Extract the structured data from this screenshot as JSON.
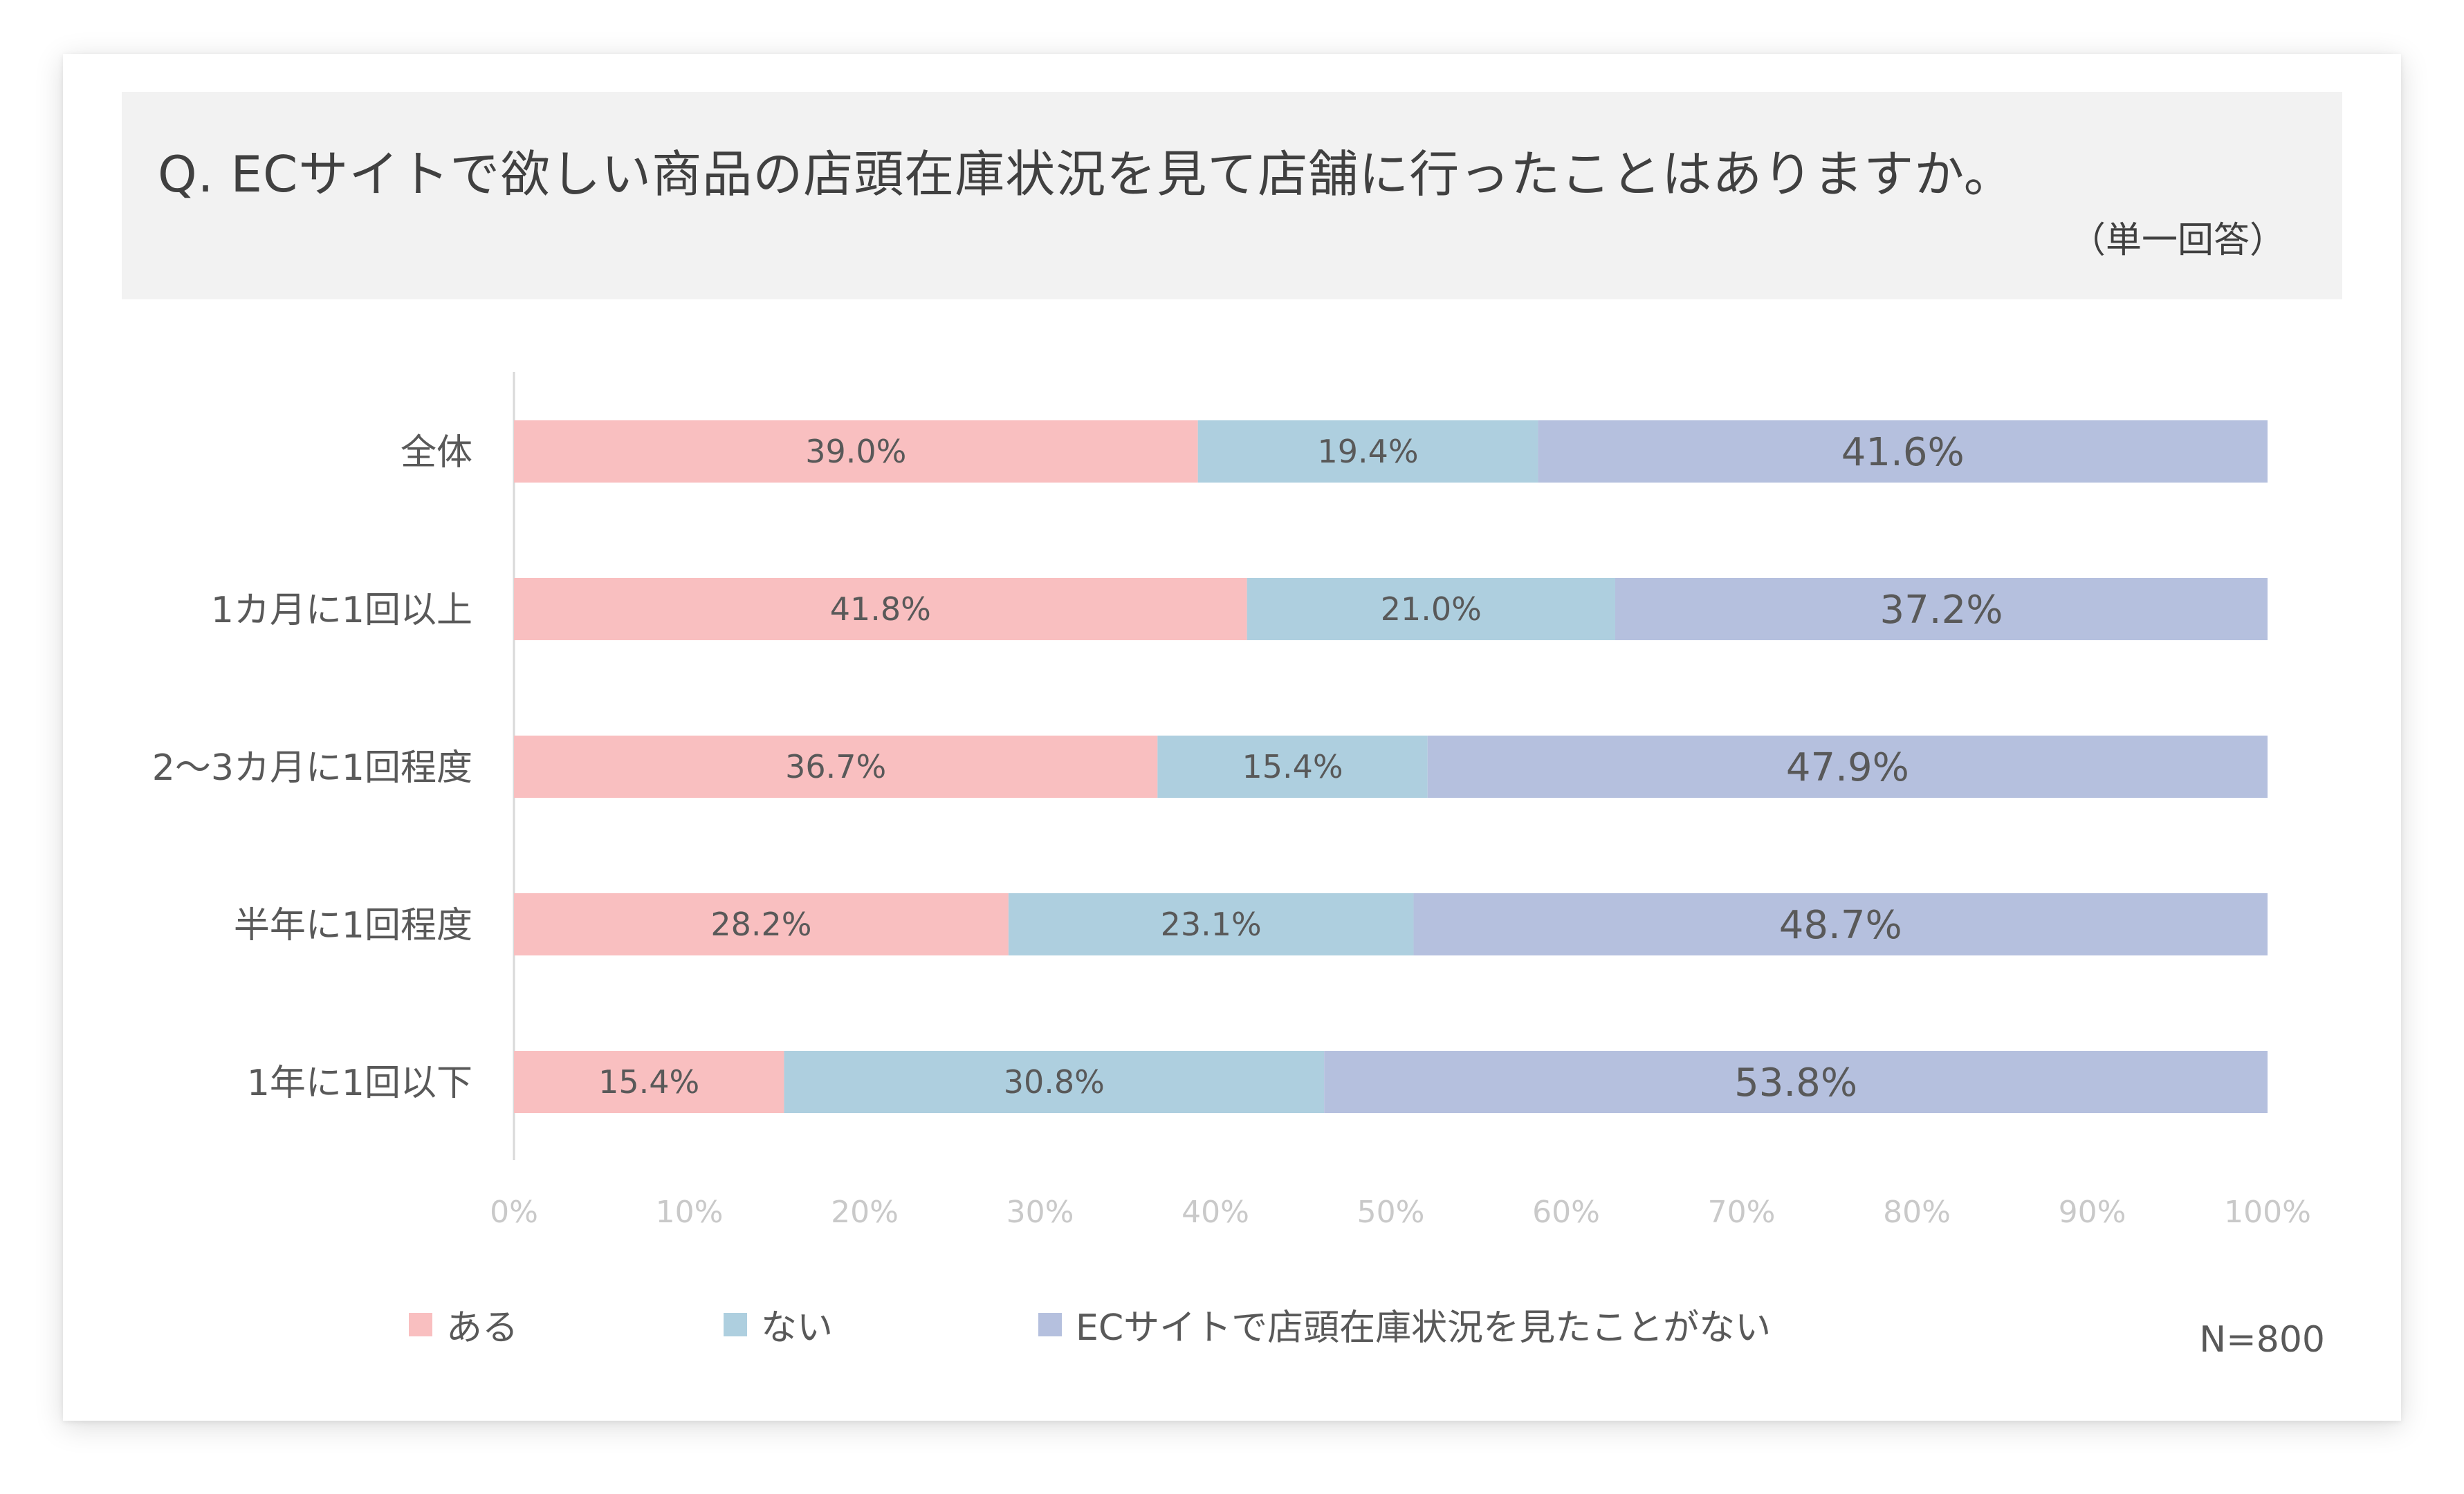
{
  "header": {
    "title": "Q.  ECサイトで欲しい商品の店頭在庫状況を見て店舗に行ったことはありますか。",
    "subtitle": "（単一回答）"
  },
  "n_label": "N=800",
  "colors": {
    "aru": "#f9bfc0",
    "nai": "#aecfdf",
    "never_seen": "#b5c0de"
  },
  "chart_data": {
    "type": "bar",
    "orientation": "horizontal",
    "stacked": true,
    "percent_stacked": true,
    "categories": [
      "全体",
      "1カ月に1回以上",
      "2〜3カ月に1回程度",
      "半年に1回程度",
      "1年に1回以下"
    ],
    "series": [
      {
        "name": "ある",
        "values": [
          39.0,
          41.8,
          36.7,
          28.2,
          15.4
        ],
        "labels": [
          "39.0%",
          "41.8%",
          "36.7%",
          "28.2%",
          "15.4%"
        ],
        "color": "#f9bfc0"
      },
      {
        "name": "ない",
        "values": [
          19.4,
          21.0,
          15.4,
          23.1,
          30.8
        ],
        "labels": [
          "19.4%",
          "21.0%",
          "15.4%",
          "23.1%",
          "30.8%"
        ],
        "color": "#aecfdf"
      },
      {
        "name": "ECサイトで店頭在庫状況を見たことがない",
        "values": [
          41.6,
          37.2,
          47.9,
          48.7,
          53.8
        ],
        "labels": [
          "41.6%",
          "37.2%",
          "47.9%",
          "48.7%",
          "53.8%"
        ],
        "color": "#b5c0de"
      }
    ],
    "x_ticks": [
      "0%",
      "10%",
      "20%",
      "30%",
      "40%",
      "50%",
      "60%",
      "70%",
      "80%",
      "90%",
      "100%"
    ],
    "xlim": [
      0,
      100
    ],
    "grid": false,
    "legend_position": "bottom-left"
  }
}
